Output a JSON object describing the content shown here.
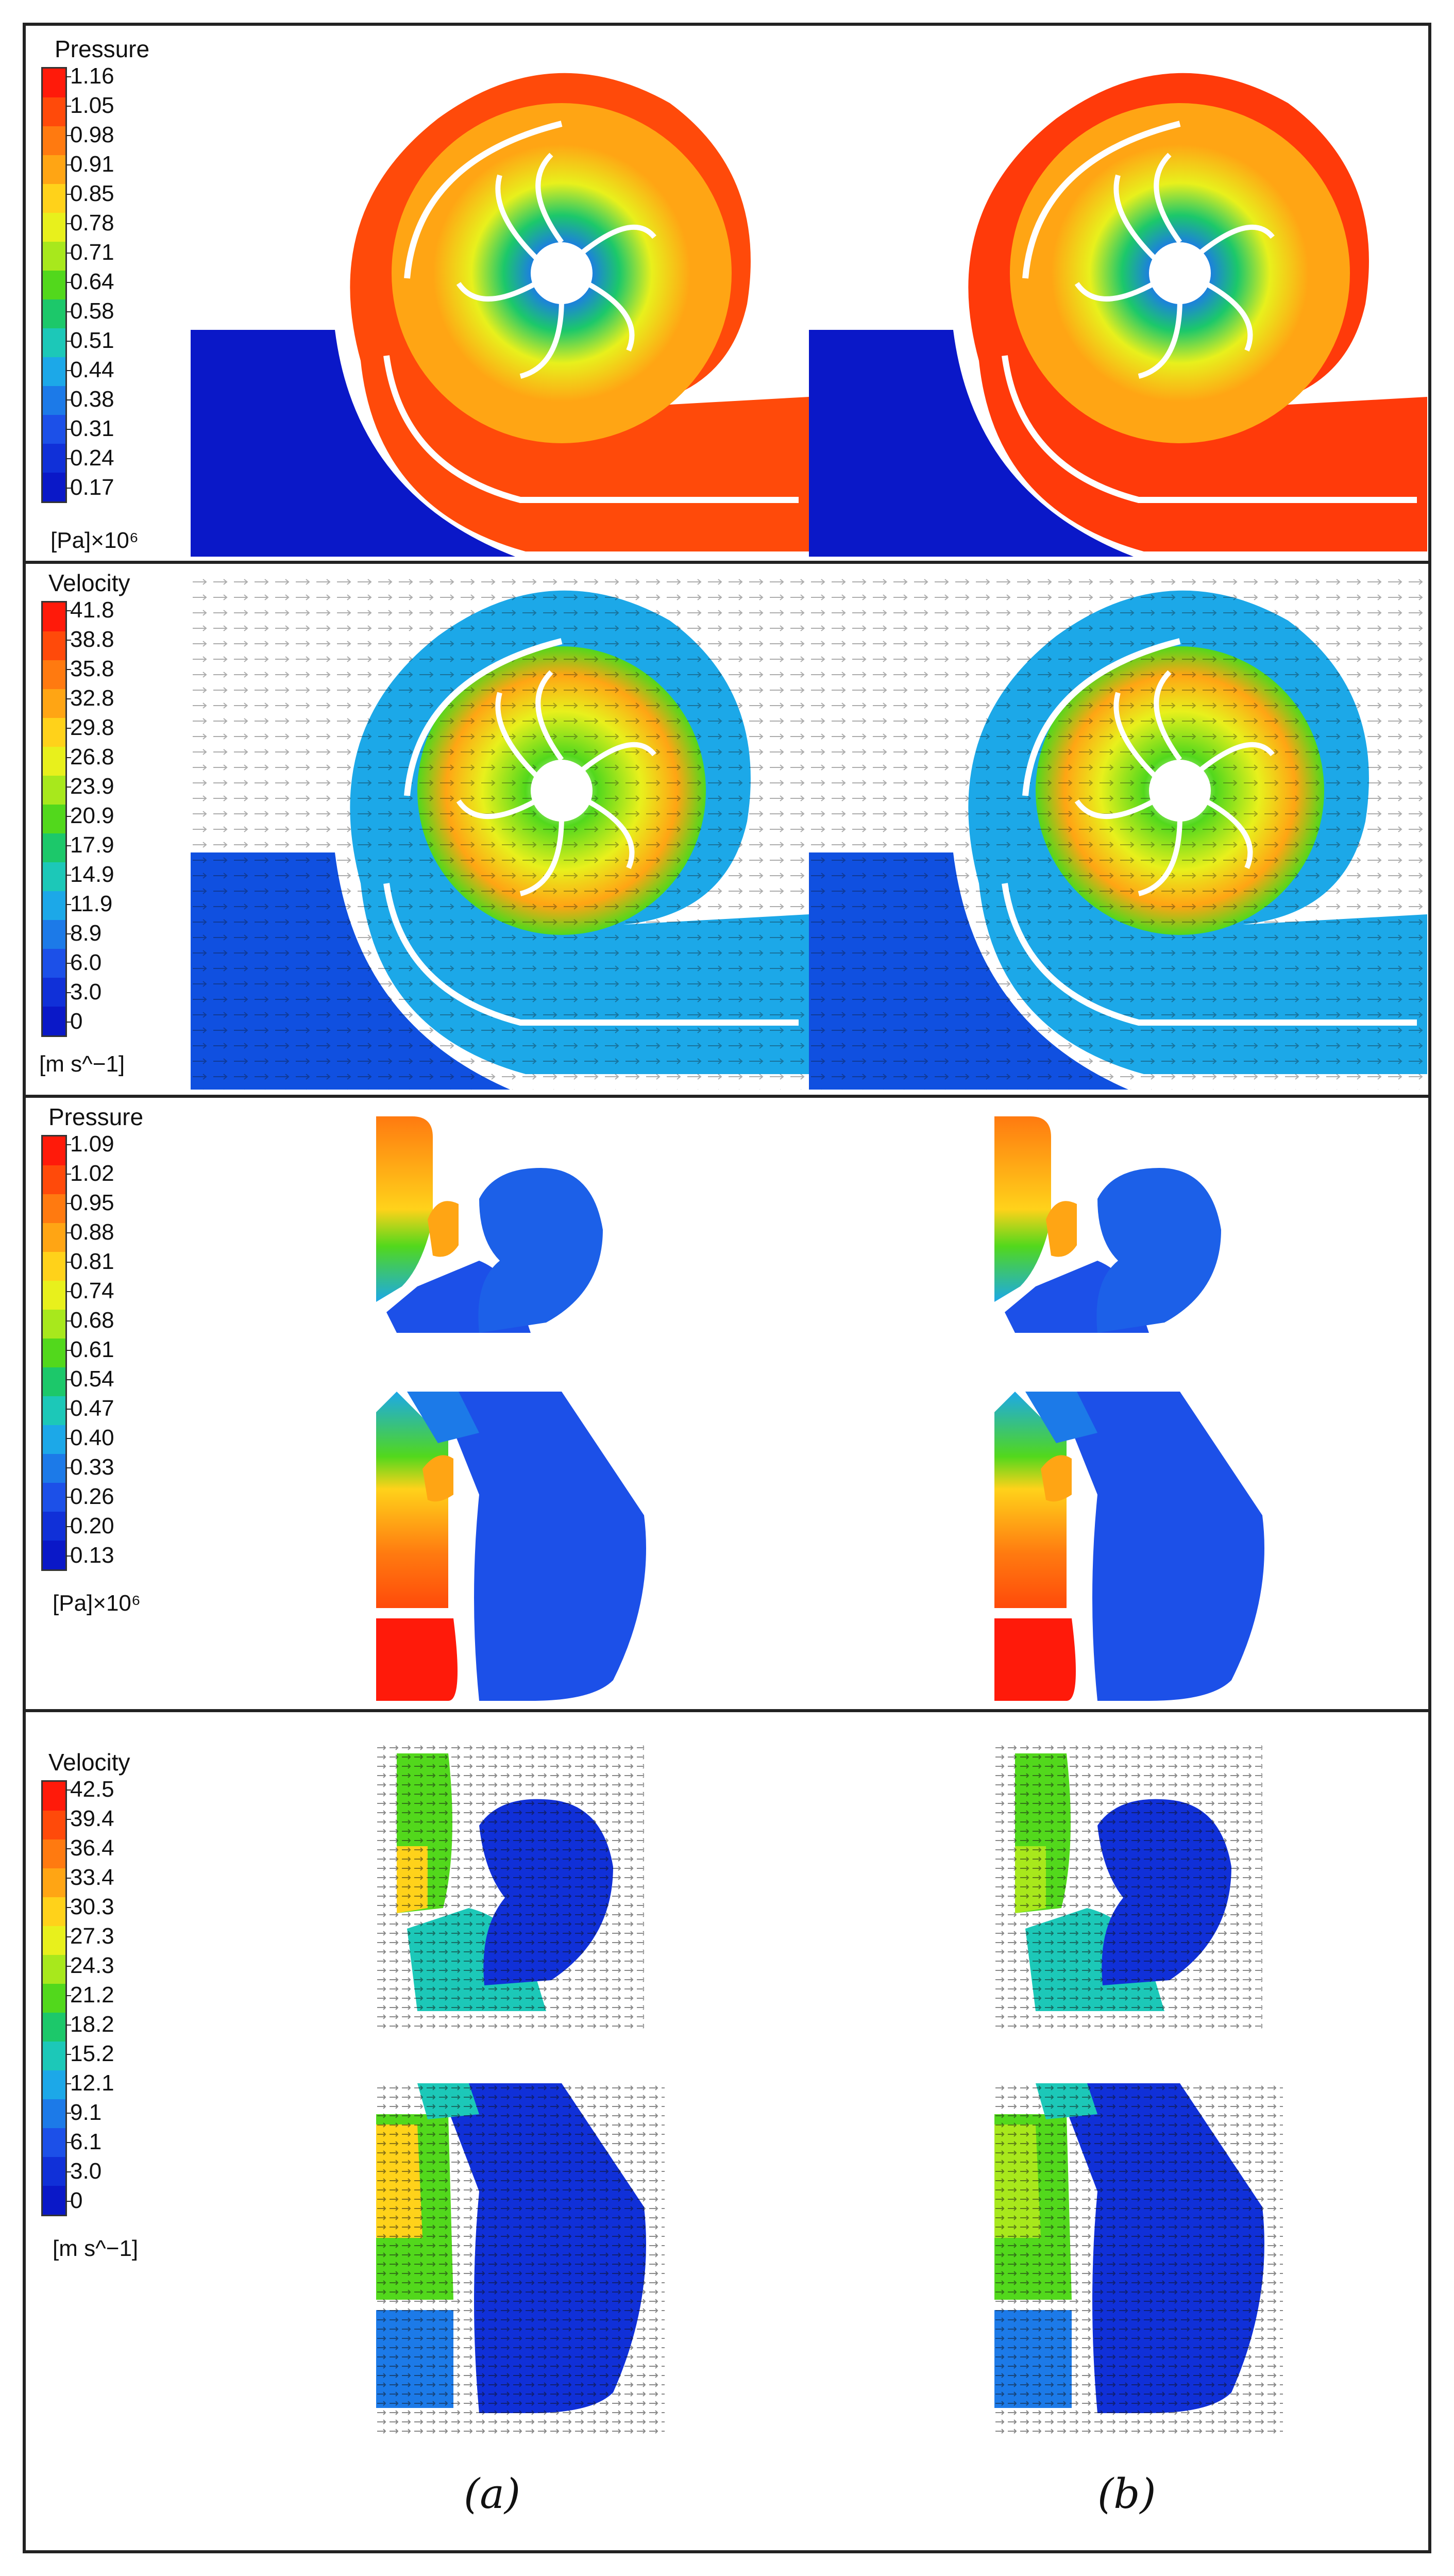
{
  "panels": {
    "pressure_volute": {
      "title": "Pressure",
      "ticks": [
        "1.16",
        "1.05",
        "0.98",
        "0.91",
        "0.85",
        "0.78",
        "0.71",
        "0.64",
        "0.58",
        "0.51",
        "0.44",
        "0.38",
        "0.31",
        "0.24",
        "0.17"
      ],
      "unit": "[Pa]×10⁶"
    },
    "velocity_volute": {
      "title": "Velocity",
      "ticks": [
        "41.8",
        "38.8",
        "35.8",
        "32.8",
        "29.8",
        "26.8",
        "23.9",
        "20.9",
        "17.9",
        "14.9",
        "11.9",
        "8.9",
        "6.0",
        "3.0",
        "0"
      ],
      "unit": "[m s^−1]"
    },
    "pressure_section": {
      "title": "Pressure",
      "ticks": [
        "1.09",
        "1.02",
        "0.95",
        "0.88",
        "0.81",
        "0.74",
        "0.68",
        "0.61",
        "0.54",
        "0.47",
        "0.40",
        "0.33",
        "0.26",
        "0.20",
        "0.13"
      ],
      "unit": "[Pa]×10⁶"
    },
    "velocity_section": {
      "title": "Velocity",
      "ticks": [
        "42.5",
        "39.4",
        "36.4",
        "33.4",
        "30.3",
        "27.3",
        "24.3",
        "21.2",
        "18.2",
        "15.2",
        "12.1",
        "9.1",
        "6.1",
        "3.0",
        "0"
      ],
      "unit": "[m s^−1]"
    }
  },
  "captions": {
    "a": "(a)",
    "b": "(b)"
  },
  "colors": {
    "scale": [
      "#ff1a0a",
      "#ff4a0a",
      "#ff7a10",
      "#ffa514",
      "#ffd21a",
      "#e8f01c",
      "#a8e81c",
      "#52d81c",
      "#1cc86a",
      "#1cc8b8",
      "#1ca8e8",
      "#1c7ae8",
      "#1c50e8",
      "#1030d8",
      "#0a18c8"
    ],
    "blade": "#ffffff",
    "frame": "#222222"
  }
}
